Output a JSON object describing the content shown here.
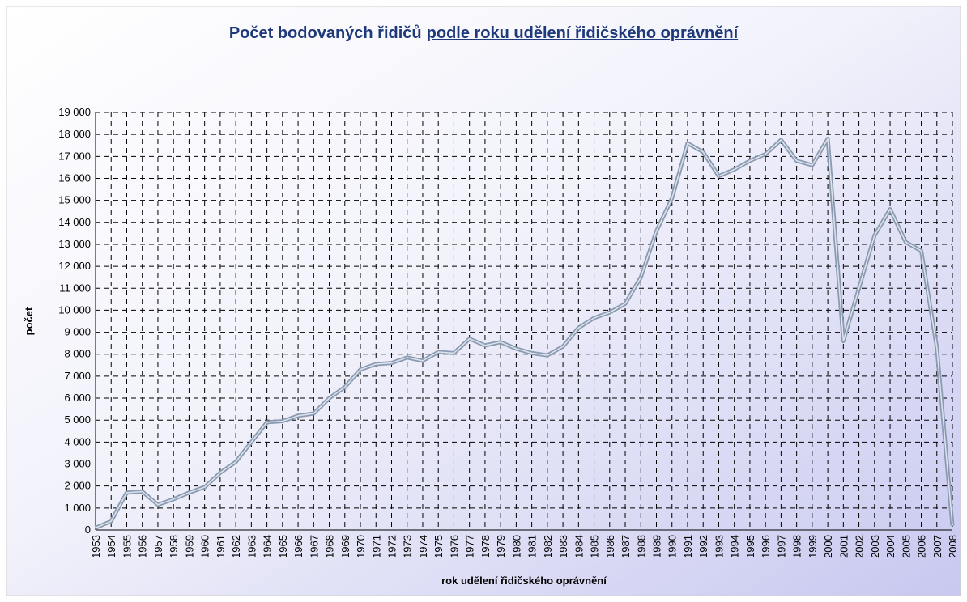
{
  "chart_data": {
    "type": "line",
    "title": [
      "Počet bodovaných řidičů",
      "podle roku udělení řidičského oprávnění"
    ],
    "x_label": "rok udělení řidičského oprávnění",
    "y_label": "počet",
    "categories": [
      "1953",
      "1954",
      "1955",
      "1956",
      "1957",
      "1958",
      "1959",
      "1960",
      "1961",
      "1962",
      "1963",
      "1964",
      "1965",
      "1966",
      "1967",
      "1968",
      "1969",
      "1970",
      "1971",
      "1972",
      "1973",
      "1974",
      "1975",
      "1976",
      "1977",
      "1978",
      "1979",
      "1980",
      "1981",
      "1982",
      "1983",
      "1984",
      "1985",
      "1986",
      "1987",
      "1988",
      "1989",
      "1990",
      "1991",
      "1992",
      "1993",
      "1994",
      "1995",
      "1996",
      "1997",
      "1998",
      "1999",
      "2000",
      "2001",
      "2002",
      "2003",
      "2004",
      "2005",
      "2006",
      "2007",
      "2008"
    ],
    "series": [
      {
        "color": "#8a9ab0",
        "values": [
          100,
          400,
          1700,
          1750,
          1150,
          1400,
          1700,
          1950,
          2600,
          3100,
          4000,
          4900,
          4950,
          5200,
          5300,
          6000,
          6500,
          7300,
          7550,
          7600,
          7850,
          7700,
          8100,
          8050,
          8700,
          8400,
          8550,
          8250,
          8050,
          7950,
          8350,
          9200,
          9650,
          9900,
          10300,
          11500,
          13600,
          15100,
          17600,
          17200,
          16100,
          16400,
          16800,
          17100,
          17750,
          16800,
          16600,
          17800,
          8600,
          11000,
          13400,
          14600,
          13100,
          12700,
          8300,
          200
        ]
      }
    ],
    "ylim": [
      0,
      19000
    ],
    "yticks": [
      0,
      {
        "value": 1000,
        "label": "1 000"
      },
      {
        "value": 2000,
        "label": "2 000"
      },
      {
        "value": 3000,
        "label": "3 000"
      },
      {
        "value": 4000,
        "label": "4 000"
      },
      {
        "value": 5000,
        "label": "5 000"
      },
      {
        "value": 6000,
        "label": "6 000"
      },
      {
        "value": 7000,
        "label": "7 000"
      },
      {
        "value": 8000,
        "label": "8 000"
      },
      {
        "value": 9000,
        "label": "9 000"
      },
      {
        "value": 10000,
        "label": "10 000"
      },
      {
        "value": 11000,
        "label": "11 000"
      },
      {
        "value": 12000,
        "label": "12 000"
      },
      {
        "value": 13000,
        "label": "13 000"
      },
      {
        "value": 14000,
        "label": "14 000"
      },
      {
        "value": 15000,
        "label": "15 000"
      },
      {
        "value": 16000,
        "label": "16 000"
      },
      {
        "value": 17000,
        "label": "17 000"
      },
      {
        "value": 18000,
        "label": "18 000"
      },
      {
        "value": 19000,
        "label": "19 000"
      }
    ],
    "grid": true
  }
}
